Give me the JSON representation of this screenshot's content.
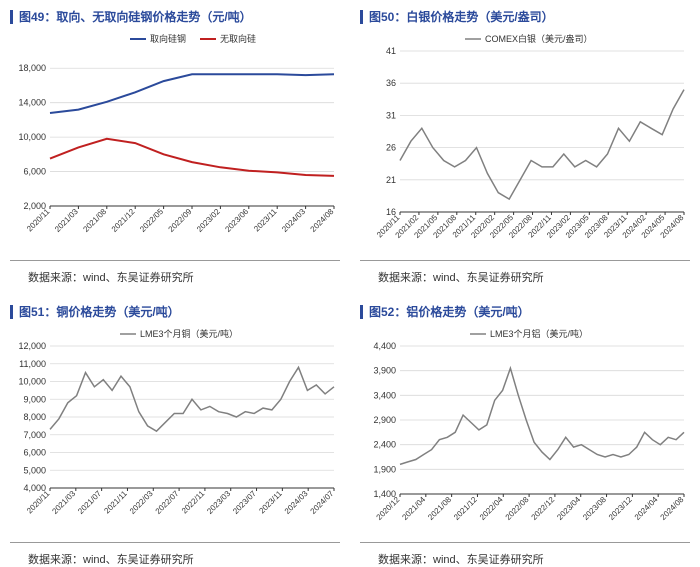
{
  "layout": {
    "rows": 2,
    "cols": 2,
    "gap": 20
  },
  "source_label": "数据来源：wind、东吴证券研究所",
  "title_bar_color": "#2b4a9b",
  "title_color": "#2b4a9b",
  "border_color": "#999999",
  "grid_color": "#d9d9d9",
  "panels": [
    {
      "id": "p49",
      "title": "图49：取向、无取向硅钢价格走势（元/吨）",
      "type": "line",
      "background_color": "#ffffff",
      "ylim": [
        2000,
        20000
      ],
      "ytick_step": 4000,
      "y_format": "comma",
      "x_labels": [
        "2020/11",
        "2021/03",
        "2021/08",
        "2021/12",
        "2022/05",
        "2022/09",
        "2023/02",
        "2023/06",
        "2023/11",
        "2024/03",
        "2024/08"
      ],
      "x_label_rotation": -45,
      "series": [
        {
          "name": "取向硅钢",
          "color": "#2b4a9b",
          "line_width": 2,
          "values": [
            12800,
            13200,
            14100,
            15200,
            16500,
            17300,
            17300,
            17300,
            17300,
            17200,
            17300
          ]
        },
        {
          "name": "无取向硅",
          "color": "#c02020",
          "line_width": 2,
          "values": [
            7500,
            8800,
            9800,
            9300,
            8000,
            7100,
            6500,
            6100,
            5900,
            5600,
            5500
          ]
        }
      ],
      "legend_pos": "top-center"
    },
    {
      "id": "p50",
      "title": "图50：白银价格走势（美元/盎司）",
      "type": "line",
      "background_color": "#ffffff",
      "ylim": [
        16,
        41
      ],
      "ytick_step": 5,
      "y_format": "plain",
      "x_labels": [
        "2020/11",
        "2021/02",
        "2021/05",
        "2021/08",
        "2021/11",
        "2022/02",
        "2022/05",
        "2022/08",
        "2022/11",
        "2023/02",
        "2023/05",
        "2023/08",
        "2023/11",
        "2024/02",
        "2024/05",
        "2024/08"
      ],
      "x_label_rotation": -45,
      "series": [
        {
          "name": "COMEX白银（美元/盎司）",
          "color": "#808080",
          "line_width": 1.5,
          "values": [
            24,
            27,
            29,
            26,
            24,
            23,
            24,
            26,
            22,
            19,
            18,
            21,
            24,
            23,
            23,
            25,
            23,
            24,
            23,
            25,
            29,
            27,
            30,
            29,
            28,
            32,
            35
          ]
        }
      ],
      "legend_pos": "top-center"
    },
    {
      "id": "p51",
      "title": "图51：铜价格走势（美元/吨）",
      "type": "line",
      "background_color": "#ffffff",
      "ylim": [
        4000,
        12000
      ],
      "ytick_step": 1000,
      "y_format": "comma",
      "x_labels": [
        "2020/11",
        "2021/03",
        "2021/07",
        "2021/11",
        "2022/03",
        "2022/07",
        "2022/11",
        "2023/03",
        "2023/07",
        "2023/11",
        "2024/03",
        "2024/07"
      ],
      "x_label_rotation": -45,
      "series": [
        {
          "name": "LME3个月铜（美元/吨）",
          "color": "#808080",
          "line_width": 1.5,
          "values": [
            7300,
            7900,
            8800,
            9200,
            10500,
            9700,
            10100,
            9500,
            10300,
            9700,
            8300,
            7500,
            7200,
            7700,
            8200,
            8200,
            9000,
            8400,
            8600,
            8300,
            8200,
            8000,
            8300,
            8200,
            8500,
            8400,
            9000,
            10000,
            10800,
            9500,
            9800,
            9300,
            9700
          ]
        }
      ],
      "legend_pos": "top-center"
    },
    {
      "id": "p52",
      "title": "图52：铝价格走势（美元/吨）",
      "type": "line",
      "background_color": "#ffffff",
      "ylim": [
        1400,
        4400
      ],
      "ytick_step": 500,
      "y_format": "comma",
      "x_labels": [
        "2020/12",
        "2021/04",
        "2021/08",
        "2021/12",
        "2022/04",
        "2022/08",
        "2022/12",
        "2023/04",
        "2023/08",
        "2023/12",
        "2024/04",
        "2024/08"
      ],
      "x_label_rotation": -45,
      "series": [
        {
          "name": "LME3个月铝（美元/吨）",
          "color": "#808080",
          "line_width": 1.5,
          "values": [
            2000,
            2050,
            2100,
            2200,
            2300,
            2500,
            2550,
            2650,
            3000,
            2850,
            2700,
            2800,
            3300,
            3500,
            3950,
            3400,
            2900,
            2450,
            2250,
            2100,
            2300,
            2550,
            2350,
            2400,
            2300,
            2200,
            2150,
            2200,
            2150,
            2200,
            2350,
            2650,
            2500,
            2400,
            2550,
            2500,
            2650
          ]
        }
      ],
      "legend_pos": "top-center"
    }
  ]
}
